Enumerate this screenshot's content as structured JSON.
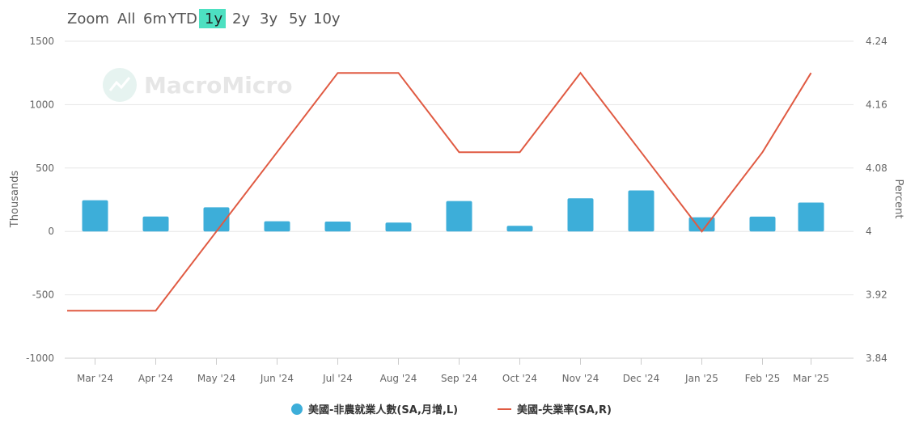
{
  "zoom": {
    "label": "Zoom",
    "options": [
      "All",
      "6m",
      "YTD",
      "1y",
      "2y",
      "3y",
      "5y",
      "10y"
    ],
    "active": "1y",
    "active_color": "#4de0c1"
  },
  "watermark": "MacroMicro",
  "chart_data": {
    "type": "bar+line",
    "categories": [
      "Mar '24",
      "Apr '24",
      "May '24",
      "Jun '24",
      "Jul '24",
      "Aug '24",
      "Sep '24",
      "Oct '24",
      "Nov '24",
      "Dec '24",
      "Jan '25",
      "Feb '25",
      "Mar '25"
    ],
    "series": [
      {
        "name": "美國-非農就業人數(SA,月增,L)",
        "type": "bar",
        "axis": "left",
        "color": "#3daed9",
        "values": [
          246,
          118,
          190,
          80,
          78,
          70,
          240,
          44,
          261,
          323,
          111,
          117,
          228
        ]
      },
      {
        "name": "美國-失業率(SA,R)",
        "type": "line",
        "axis": "right",
        "color": "#e05a42",
        "values": [
          3.9,
          3.9,
          4.0,
          4.1,
          4.2,
          4.2,
          4.1,
          4.1,
          4.2,
          4.1,
          4.0,
          4.1,
          4.2
        ]
      }
    ],
    "y_left": {
      "label": "Thousands",
      "ylim": [
        -1000,
        1500
      ],
      "ticks": [
        1500,
        1000,
        500,
        0,
        -500,
        -1000
      ],
      "tick_labels": [
        "1500",
        "1000",
        "500",
        "0",
        "-500",
        "-1000"
      ]
    },
    "y_right": {
      "label": "Percent",
      "ylim": [
        3.84,
        4.24
      ],
      "ticks": [
        4.24,
        4.16,
        4.08,
        4.0,
        3.92,
        3.84
      ],
      "tick_labels": [
        "4.24",
        "4.16",
        "4.08",
        "4",
        "3.92",
        "3.84"
      ]
    },
    "grid": true,
    "legend_position": "bottom"
  }
}
